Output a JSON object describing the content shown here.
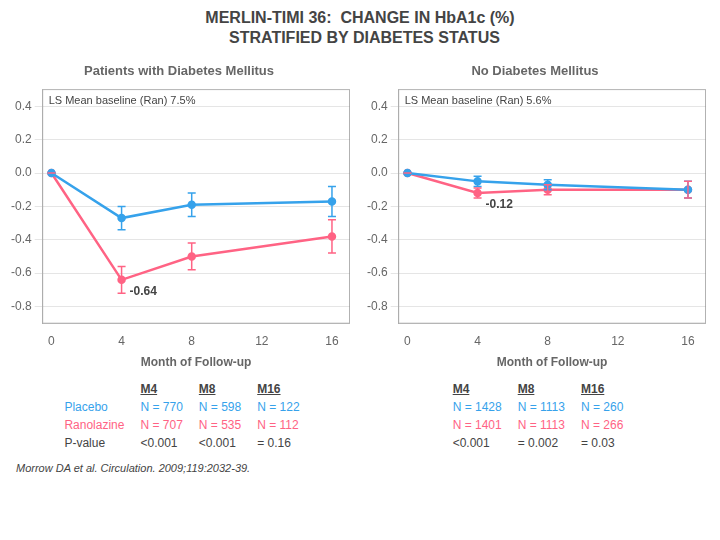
{
  "title": "MERLIN-TIMI 36:  CHANGE IN HbA1c (%)\n  STRATIFIED BY DIABETES STATUS",
  "chart_data": [
    {
      "type": "line",
      "title": "Patients with Diabetes Mellitus",
      "x_label": "Month of Follow-up",
      "x": [
        0,
        4,
        8,
        16
      ],
      "xlim": [
        -0.5,
        17
      ],
      "xticks": [
        0,
        4,
        8,
        12,
        16
      ],
      "ylim": [
        -0.9,
        0.5
      ],
      "yticks": [
        0.4,
        0.2,
        {
          "value": 0.0,
          "label": "0.0"
        },
        -0.2,
        -0.4,
        -0.6,
        -0.8
      ],
      "grid": "y",
      "marker": "circle",
      "series": [
        {
          "color": "#36a2eb",
          "values": [
            0.0,
            -0.27,
            -0.19,
            -0.17
          ],
          "errors": [
            0.0,
            0.07,
            0.07,
            0.09
          ]
        },
        {
          "color": "#ff6384",
          "values": [
            0.0,
            -0.64,
            -0.5,
            -0.38
          ],
          "errors": [
            0.0,
            0.08,
            0.08,
            0.1
          ],
          "value_labels": [
            null,
            "-0.64",
            null,
            null
          ]
        }
      ],
      "annotations": [
        "LS Mean baseline (Ran) 7.5%"
      ],
      "table": {
        "header": [
          "M4",
          "M8",
          "M16"
        ],
        "rows": [
          {
            "label": "Placebo",
            "cells": [
              "N = 770",
              "N = 598",
              "N = 122"
            ]
          },
          {
            "label": "Ranolazine",
            "cells": [
              "N = 707",
              "N = 535",
              "N = 112"
            ]
          },
          {
            "label": "P-value",
            "cells": [
              "<0.001",
              "<0.001",
              "= 0.16"
            ]
          }
        ]
      }
    },
    {
      "type": "line",
      "title": "No Diabetes Mellitus",
      "x_label": "Month of Follow-up",
      "x": [
        0,
        4,
        8,
        16
      ],
      "xlim": [
        -0.5,
        17
      ],
      "xticks": [
        0,
        4,
        8,
        12,
        16
      ],
      "ylim": [
        -0.9,
        0.5
      ],
      "yticks": [
        0.4,
        0.2,
        {
          "value": 0.0,
          "label": "0.0"
        },
        -0.2,
        -0.4,
        -0.6,
        -0.8
      ],
      "grid": "y",
      "marker": "circle",
      "series": [
        {
          "color": "#36a2eb",
          "values": [
            0.0,
            -0.05,
            -0.07,
            -0.1
          ],
          "errors": [
            0.0,
            0.03,
            0.03,
            0.05
          ]
        },
        {
          "color": "#ff6384",
          "values": [
            0.0,
            -0.12,
            -0.1,
            -0.1
          ],
          "errors": [
            0.0,
            0.03,
            0.03,
            0.05
          ],
          "value_labels": [
            null,
            "-0.12",
            null,
            null
          ]
        }
      ],
      "annotations": [
        "LS Mean baseline (Ran) 5.6%"
      ],
      "table": {
        "header": [
          "M4",
          "M8",
          "M16"
        ],
        "rows": [
          {
            "cells": [
              "N = 1428",
              "N = 1113",
              "N = 260"
            ]
          },
          {
            "cells": [
              "N = 1401",
              "N = 1113",
              "N = 266"
            ]
          },
          {
            "cells": [
              "<0.001",
              "= 0.002",
              "= 0.03"
            ]
          }
        ]
      }
    }
  ],
  "citation": "Morrow DA et al. Circulation. 2009;119:2032-39."
}
